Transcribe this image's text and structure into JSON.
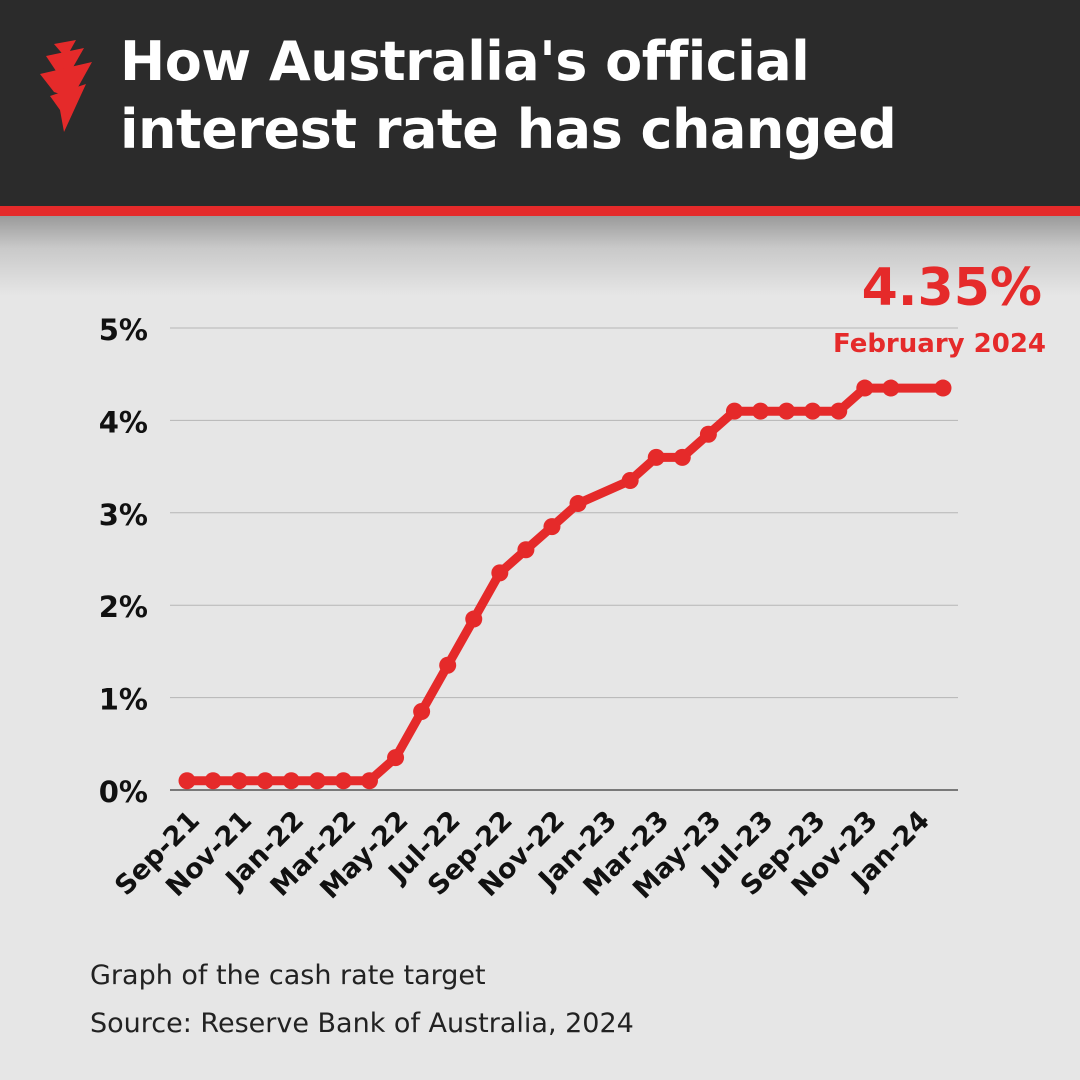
{
  "header": {
    "title": "How Australia's official\ninterest rate has changed"
  },
  "colors": {
    "header_bg": "#2b2b2b",
    "accent": "#e52a2a",
    "background": "#e6e6e6",
    "text": "#111111",
    "grid": "#b5b5b5"
  },
  "icons": {
    "logo": "brand-logo-icon"
  },
  "chart_data": {
    "type": "line",
    "title": "",
    "xlabel": "",
    "ylabel": "",
    "ylim": [
      0,
      5
    ],
    "yticks": [
      0,
      1,
      2,
      3,
      4,
      5
    ],
    "ytick_labels": [
      "0%",
      "1%",
      "2%",
      "3%",
      "4%",
      "5%"
    ],
    "grid": true,
    "categories": [
      "Sep-21",
      "Oct-21",
      "Nov-21",
      "Dec-21",
      "Jan-22",
      "Feb-22",
      "Mar-22",
      "Apr-22",
      "May-22",
      "Jun-22",
      "Jul-22",
      "Aug-22",
      "Sep-22",
      "Oct-22",
      "Nov-22",
      "Dec-22",
      "Feb-23",
      "Mar-23",
      "Apr-23",
      "May-23",
      "Jun-23",
      "Jul-23",
      "Aug-23",
      "Sep-23",
      "Oct-23",
      "Nov-23",
      "Dec-23",
      "Feb-24"
    ],
    "x_index": [
      0,
      1,
      2,
      3,
      4,
      5,
      6,
      7,
      8,
      9,
      10,
      11,
      12,
      13,
      14,
      15,
      17,
      18,
      19,
      20,
      21,
      22,
      23,
      24,
      25,
      26,
      27,
      29
    ],
    "series": [
      {
        "values": [
          0.1,
          0.1,
          0.1,
          0.1,
          0.1,
          0.1,
          0.1,
          0.1,
          0.35,
          0.85,
          1.35,
          1.85,
          2.35,
          2.6,
          2.85,
          3.1,
          3.35,
          3.6,
          3.6,
          3.85,
          4.1,
          4.1,
          4.1,
          4.1,
          4.1,
          4.35,
          4.35,
          4.35
        ]
      }
    ],
    "xtick_labels": [
      "Sep-21",
      "Nov-21",
      "Jan-22",
      "Mar-22",
      "May-22",
      "Jul-22",
      "Sep-22",
      "Nov-22",
      "Jan-23",
      "Mar-23",
      "May-23",
      "Jul-23",
      "Sep-23",
      "Nov-23",
      "Jan-24"
    ],
    "xtick_index": [
      0,
      2,
      4,
      6,
      8,
      10,
      12,
      14,
      16,
      18,
      20,
      22,
      24,
      26,
      28
    ],
    "annotation": {
      "value": "4.35%",
      "label": "February 2024"
    }
  },
  "footer": {
    "caption": "Graph of the cash rate target",
    "source": "Source: Reserve Bank of Australia, 2024"
  }
}
